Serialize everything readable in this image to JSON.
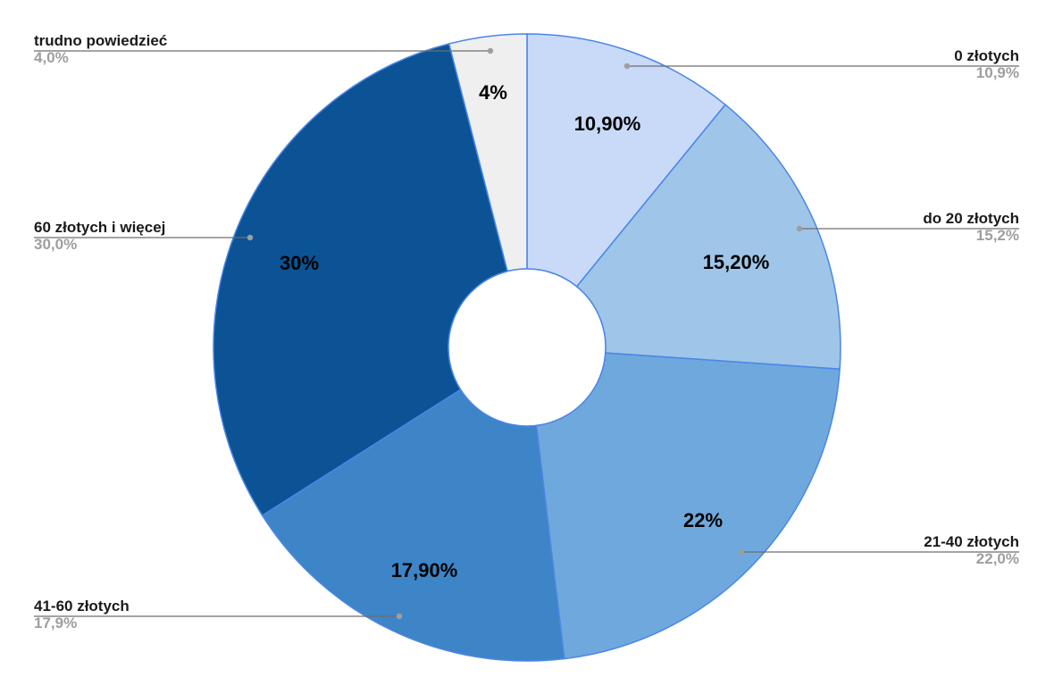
{
  "chart_data": {
    "type": "pie",
    "donut": true,
    "title": "",
    "slices": [
      {
        "name": "0 złotych",
        "value": 10.9,
        "slice_label": "10,90%",
        "legend_value": "10,9%",
        "color": "#c9daf8"
      },
      {
        "name": "do 20 złotych",
        "value": 15.2,
        "slice_label": "15,20%",
        "legend_value": "15,2%",
        "color": "#9fc5e8"
      },
      {
        "name": "21-40 złotych",
        "value": 22.0,
        "slice_label": "22%",
        "legend_value": "22,0%",
        "color": "#6fa8dc"
      },
      {
        "name": "41-60 złotych",
        "value": 17.9,
        "slice_label": "17,90%",
        "legend_value": "17,9%",
        "color": "#3d85c6"
      },
      {
        "name": "60 złotych i więcej",
        "value": 30.0,
        "slice_label": "30%",
        "legend_value": "30,0%",
        "color": "#0b5394"
      },
      {
        "name": "trudno powiedzieć",
        "value": 4.0,
        "slice_label": "4%",
        "legend_value": "4,0%",
        "color": "#efefef"
      }
    ],
    "legend": "callouts"
  }
}
